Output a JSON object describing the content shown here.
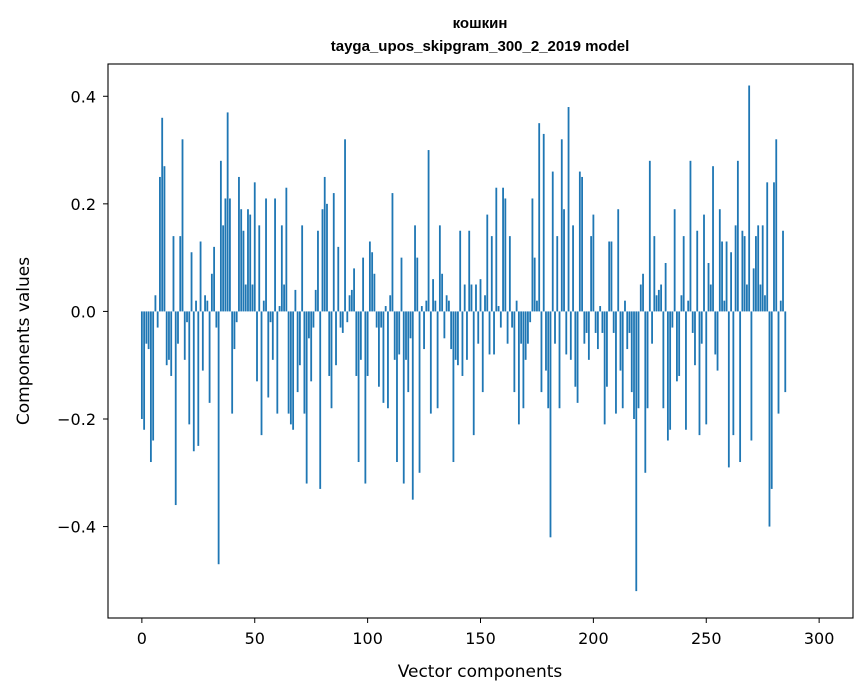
{
  "chart_data": {
    "type": "bar",
    "title": "кошкин",
    "subtitle": "tayga_upos_skipgram_300_2_2019 model",
    "xlabel": "Vector components",
    "ylabel": "Components values",
    "xlim": [
      -15,
      315
    ],
    "ylim": [
      -0.57,
      0.46
    ],
    "xticks": [
      0,
      50,
      100,
      150,
      200,
      250,
      300
    ],
    "xtick_labels": [
      "0",
      "50",
      "100",
      "150",
      "200",
      "250",
      "300"
    ],
    "yticks": [
      -0.4,
      -0.2,
      0.0,
      0.2,
      0.4
    ],
    "ytick_labels": [
      "−0.4",
      "−0.2",
      "0.0",
      "0.2",
      "0.4"
    ],
    "color": "#1f77b4",
    "values": [
      -0.2,
      -0.22,
      -0.06,
      -0.07,
      -0.28,
      -0.24,
      0.03,
      -0.03,
      0.25,
      0.36,
      0.27,
      -0.1,
      -0.09,
      -0.12,
      0.14,
      -0.36,
      -0.06,
      0.14,
      0.32,
      -0.09,
      -0.02,
      -0.21,
      0.11,
      -0.26,
      0.02,
      -0.25,
      0.13,
      -0.11,
      0.03,
      0.02,
      -0.17,
      0.07,
      0.12,
      -0.03,
      -0.47,
      0.28,
      0.16,
      0.21,
      0.37,
      0.21,
      -0.19,
      -0.07,
      -0.02,
      0.25,
      0.19,
      0.15,
      0.05,
      0.19,
      0.18,
      0.05,
      0.24,
      -0.13,
      0.16,
      -0.23,
      0.02,
      0.21,
      -0.16,
      -0.02,
      -0.09,
      0.21,
      -0.19,
      0.01,
      0.16,
      0.05,
      0.23,
      -0.19,
      -0.21,
      -0.22,
      0.04,
      -0.15,
      -0.1,
      0.16,
      -0.19,
      -0.32,
      -0.05,
      -0.13,
      -0.03,
      0.04,
      0.15,
      -0.33,
      0.19,
      0.25,
      0.2,
      -0.12,
      -0.18,
      0.22,
      -0.1,
      0.12,
      -0.03,
      -0.04,
      0.32,
      -0.02,
      0.03,
      0.04,
      0.08,
      -0.12,
      -0.28,
      -0.09,
      0.1,
      -0.32,
      -0.12,
      0.13,
      0.11,
      0.07,
      -0.03,
      -0.14,
      -0.03,
      -0.17,
      0.01,
      -0.18,
      0.03,
      0.22,
      -0.09,
      -0.28,
      -0.08,
      0.1,
      -0.32,
      -0.09,
      -0.15,
      -0.05,
      -0.35,
      0.16,
      0.1,
      -0.3,
      0.01,
      -0.07,
      0.02,
      0.3,
      -0.19,
      0.06,
      0.02,
      -0.18,
      0.16,
      0.07,
      -0.05,
      0.03,
      0.02,
      -0.07,
      -0.28,
      -0.09,
      -0.1,
      0.15,
      -0.12,
      0.05,
      -0.09,
      0.15,
      0.05,
      -0.23,
      0.05,
      -0.06,
      0.06,
      -0.15,
      0.03,
      0.18,
      -0.08,
      0.14,
      -0.08,
      0.23,
      0.01,
      -0.03,
      0.23,
      0.21,
      -0.06,
      0.14,
      -0.03,
      -0.15,
      0.02,
      -0.21,
      -0.06,
      -0.18,
      -0.09,
      -0.06,
      -0.02,
      0.21,
      0.1,
      0.02,
      0.35,
      -0.15,
      0.33,
      -0.11,
      -0.18,
      -0.42,
      0.26,
      -0.06,
      0.14,
      -0.18,
      0.32,
      0.19,
      -0.08,
      0.38,
      -0.09,
      0.16,
      -0.14,
      -0.17,
      0.26,
      0.25,
      -0.06,
      -0.04,
      -0.09,
      0.14,
      0.18,
      -0.04,
      -0.07,
      0.01,
      -0.04,
      -0.21,
      -0.14,
      0.13,
      0.13,
      -0.04,
      -0.19,
      0.19,
      -0.11,
      -0.18,
      0.02,
      -0.07,
      -0.04,
      -0.15,
      -0.2,
      -0.52,
      -0.18,
      0.05,
      0.07,
      -0.3,
      -0.18,
      0.28,
      -0.06,
      0.14,
      0.03,
      0.04,
      0.05,
      -0.18,
      0.09,
      -0.24,
      -0.22,
      -0.03,
      0.19,
      -0.13,
      -0.12,
      0.03,
      0.14,
      -0.22,
      0.02,
      0.28,
      -0.04,
      -0.1,
      0.15,
      -0.23,
      -0.06,
      0.18,
      -0.21,
      0.09,
      0.05,
      0.27,
      -0.08,
      -0.11,
      0.19,
      0.13,
      0.02,
      0.13,
      -0.29,
      0.11,
      -0.23,
      0.16,
      0.28,
      -0.28,
      0.15,
      0.14,
      0.05,
      0.42,
      -0.24,
      0.08,
      0.14,
      0.16,
      0.05,
      0.16,
      0.03,
      0.24,
      -0.4,
      -0.33,
      0.24,
      0.32,
      -0.19,
      0.02,
      0.15,
      -0.15
    ]
  }
}
